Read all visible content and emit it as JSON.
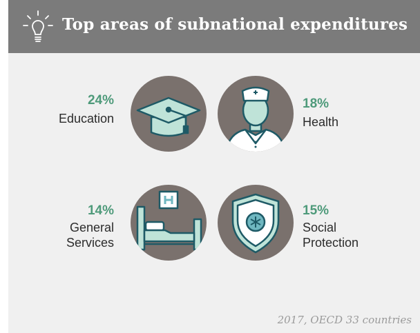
{
  "header": {
    "title": "Top areas of subnational expenditures",
    "icon": "lightbulb-icon"
  },
  "items": [
    {
      "percent": "24%",
      "label": "Education",
      "icon": "graduation-cap-icon"
    },
    {
      "percent": "18%",
      "label": "Health",
      "icon": "nurse-icon"
    },
    {
      "percent": "14%",
      "label_lines": [
        "General",
        "Services"
      ],
      "icon": "hospital-bed-icon"
    },
    {
      "percent": "15%",
      "label_lines": [
        "Social",
        "Protection"
      ],
      "icon": "shield-icon"
    }
  ],
  "footnote": "2017, OECD 33 countries",
  "colors": {
    "header_bg": "#7b7b7b",
    "card_bg": "#f0f0f0",
    "circle": "#7a716d",
    "accent_green": "#4e9a7a",
    "icon_fill": "#bfe3d8",
    "icon_stroke": "#1e5a66"
  }
}
